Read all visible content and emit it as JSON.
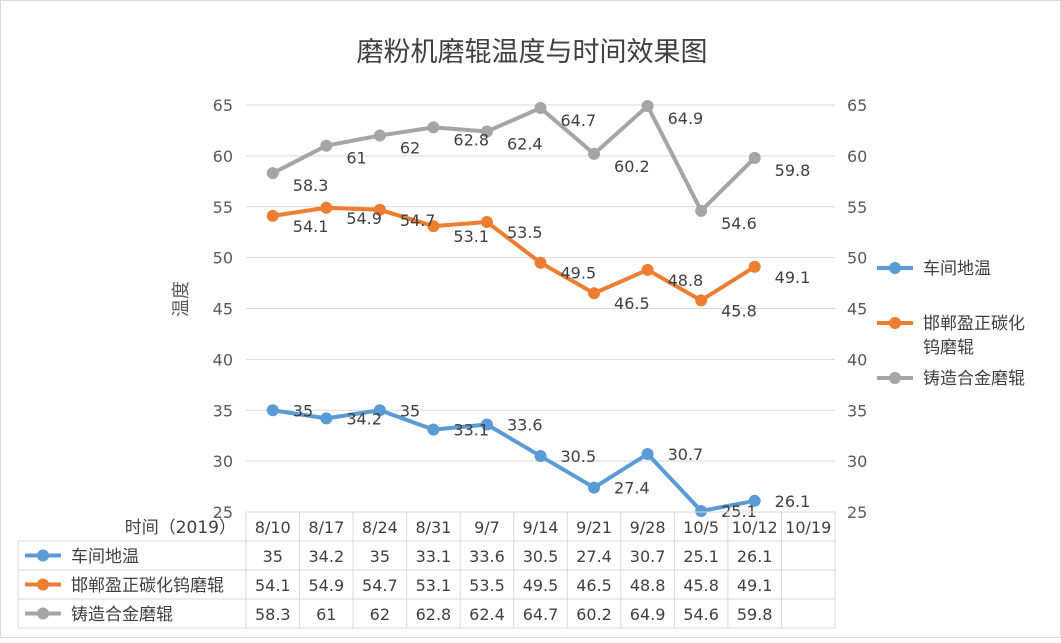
{
  "chart_data": {
    "type": "line",
    "title": "磨粉机磨辊温度与时间效果图",
    "xlabel": "时间（2019）",
    "ylabel": "温度",
    "ylim": [
      25,
      65
    ],
    "yticks": [
      25,
      30,
      35,
      40,
      45,
      50,
      55,
      60,
      65
    ],
    "secondary_ylim": [
      25,
      65
    ],
    "grid": true,
    "legend_position": "right",
    "categories": [
      "8/10",
      "8/17",
      "8/24",
      "8/31",
      "9/7",
      "9/14",
      "9/21",
      "9/28",
      "10/5",
      "10/12",
      "10/19"
    ],
    "series": [
      {
        "name": "车间地温",
        "color": "#5b9bd5",
        "values": [
          35,
          34.2,
          35,
          33.1,
          33.6,
          30.5,
          27.4,
          30.7,
          25.1,
          26.1,
          null
        ]
      },
      {
        "name": "邯郸盈正碳化钨磨辊",
        "color": "#ed7d31",
        "values": [
          54.1,
          54.9,
          54.7,
          53.1,
          53.5,
          49.5,
          46.5,
          48.8,
          45.8,
          49.1,
          null
        ]
      },
      {
        "name": "铸造合金磨辊",
        "color": "#a5a5a5",
        "values": [
          58.3,
          61,
          62,
          62.8,
          62.4,
          64.7,
          60.2,
          64.9,
          54.6,
          59.8,
          null
        ]
      }
    ],
    "legend": [
      {
        "label_lines": [
          "车间地温"
        ]
      },
      {
        "label_lines": [
          "邯郸盈正碳化",
          "钨磨辊"
        ]
      },
      {
        "label_lines": [
          "铸造合金磨辊"
        ]
      }
    ],
    "table": {
      "header": "时间（2019）",
      "rows": [
        {
          "label": "车间地温",
          "cells": [
            "35",
            "34.2",
            "35",
            "33.1",
            "33.6",
            "30.5",
            "27.4",
            "30.7",
            "25.1",
            "26.1",
            ""
          ]
        },
        {
          "label": "邯郸盈正碳化钨磨辊",
          "cells": [
            "54.1",
            "54.9",
            "54.7",
            "53.1",
            "53.5",
            "49.5",
            "46.5",
            "48.8",
            "45.8",
            "49.1",
            ""
          ]
        },
        {
          "label": "铸造合金磨辊",
          "cells": [
            "58.3",
            "61",
            "62",
            "62.8",
            "62.4",
            "64.7",
            "60.2",
            "64.9",
            "54.6",
            "59.8",
            ""
          ]
        }
      ]
    }
  }
}
